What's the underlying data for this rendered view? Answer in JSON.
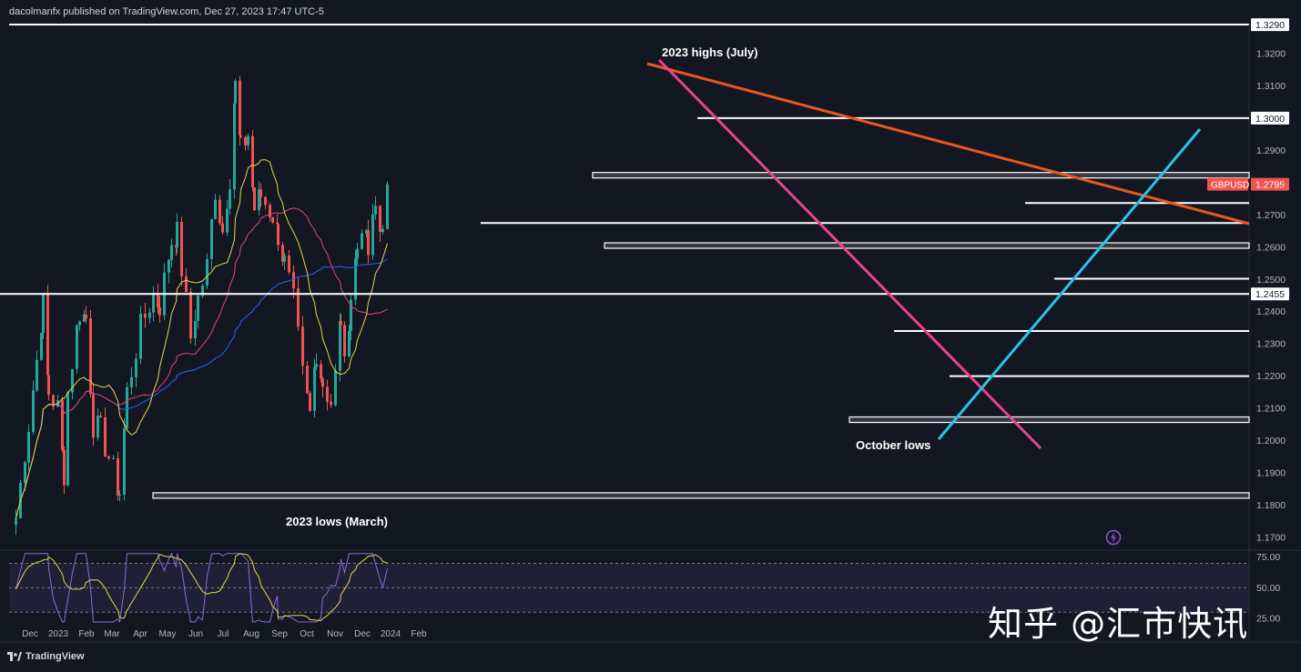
{
  "header": {
    "published": "dacolmanfx published on TradingView.com, Dec 27, 2023 17:47 UTC-5"
  },
  "footer": {
    "brand": "TradingView",
    "logo_icon": "tradingview-logo-icon"
  },
  "watermark": {
    "text": "知乎 @汇市快讯"
  },
  "colors": {
    "background": "#131722",
    "up": "#26a69a",
    "down": "#ef5350",
    "sma50": "#e6d84a",
    "sma100": "#e0457b",
    "sma200": "#2962ff",
    "downtrend_major": "#e8571e",
    "downtrend_pink": "#e84393",
    "uptrend": "#29c4e8",
    "rsi": "#8e6bd8",
    "rsi_signal": "#e6d84a",
    "price_badge": "#ef5350",
    "text": "#d1d4dc"
  },
  "chart_data": {
    "type": "line",
    "symbol": "GBPUSD",
    "last_price": "1.2795",
    "price_axis": {
      "ticks": [
        "1.3200",
        "1.3100",
        "1.2900",
        "1.2800",
        "1.2700",
        "1.2600",
        "1.2500",
        "1.2400",
        "1.2300",
        "1.2200",
        "1.2100",
        "1.2000",
        "1.1900",
        "1.1800",
        "1.1700"
      ],
      "ylim": [
        1.167,
        1.329
      ]
    },
    "highlighted_levels": [
      "1.3290",
      "1.3000",
      "1.2455"
    ],
    "time_axis": {
      "labels": [
        "Dec",
        "2023",
        "Feb",
        "Mar",
        "Apr",
        "May",
        "Jun",
        "Jul",
        "Aug",
        "Sep",
        "Oct",
        "Nov",
        "Dec",
        "2024",
        "Feb"
      ]
    },
    "annotations": [
      {
        "text": "2023 highs (July)"
      },
      {
        "text": "2023 lows (March)"
      },
      {
        "text": "October lows"
      }
    ],
    "close_series": {
      "name": "",
      "points": [
        [
          "2022-11-14",
          1.176
        ],
        [
          "2022-11-28",
          1.205
        ],
        [
          "2022-12-07",
          1.225
        ],
        [
          "2022-12-14",
          1.242
        ],
        [
          "2022-12-20",
          1.215
        ],
        [
          "2022-12-30",
          1.21
        ],
        [
          "2023-01-06",
          1.19
        ],
        [
          "2023-01-10",
          1.215
        ],
        [
          "2023-01-23",
          1.24
        ],
        [
          "2023-01-30",
          1.238
        ],
        [
          "2023-02-07",
          1.205
        ],
        [
          "2023-02-15",
          1.203
        ],
        [
          "2023-02-24",
          1.195
        ],
        [
          "2023-03-08",
          1.184
        ],
        [
          "2023-03-16",
          1.215
        ],
        [
          "2023-03-31",
          1.235
        ],
        [
          "2023-04-14",
          1.245
        ],
        [
          "2023-04-21",
          1.242
        ],
        [
          "2023-05-04",
          1.262
        ],
        [
          "2023-05-10",
          1.264
        ],
        [
          "2023-05-25",
          1.232
        ],
        [
          "2023-06-02",
          1.244
        ],
        [
          "2023-06-12",
          1.254
        ],
        [
          "2023-06-21",
          1.278
        ],
        [
          "2023-06-29",
          1.265
        ],
        [
          "2023-07-07",
          1.282
        ],
        [
          "2023-07-13",
          1.31
        ],
        [
          "2023-07-19",
          1.29
        ],
        [
          "2023-07-27",
          1.295
        ],
        [
          "2023-08-03",
          1.272
        ],
        [
          "2023-08-10",
          1.276
        ],
        [
          "2023-08-23",
          1.27
        ],
        [
          "2023-08-29",
          1.264
        ],
        [
          "2023-09-05",
          1.255
        ],
        [
          "2023-09-15",
          1.243
        ],
        [
          "2023-09-25",
          1.22
        ],
        [
          "2023-10-03",
          1.208
        ],
        [
          "2023-10-10",
          1.228
        ],
        [
          "2023-10-17",
          1.218
        ],
        [
          "2023-10-26",
          1.212
        ],
        [
          "2023-10-31",
          1.22
        ],
        [
          "2023-11-06",
          1.238
        ],
        [
          "2023-11-10",
          1.222
        ],
        [
          "2023-11-17",
          1.245
        ],
        [
          "2023-11-24",
          1.26
        ],
        [
          "2023-11-29",
          1.268
        ],
        [
          "2023-12-06",
          1.258
        ],
        [
          "2023-12-14",
          1.272
        ],
        [
          "2023-12-19",
          1.265
        ],
        [
          "2023-12-22",
          1.269
        ],
        [
          "2023-12-27",
          1.2795
        ]
      ]
    }
  }
}
